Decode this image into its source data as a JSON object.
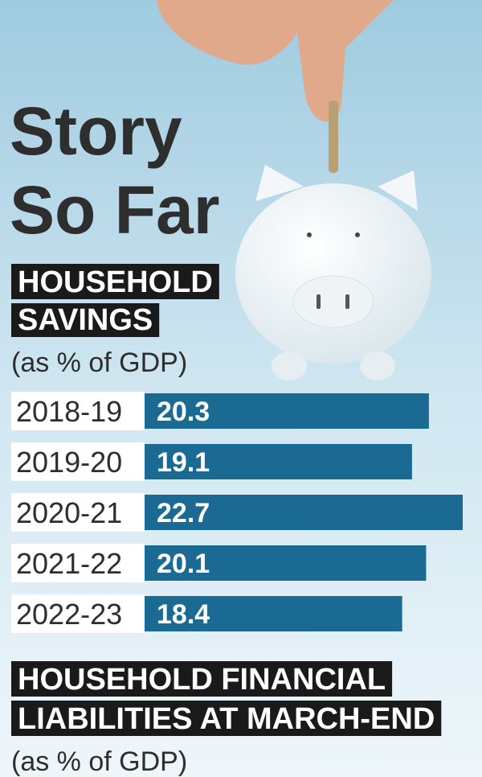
{
  "chart_data": {
    "type": "bar",
    "title": [
      "Story",
      "So Far"
    ],
    "heading": [
      "HOUSEHOLD",
      "SAVINGS"
    ],
    "unit": "(as % of GDP)",
    "categories": [
      "2018-19",
      "2019-20",
      "2020-21",
      "2021-22",
      "2022-23"
    ],
    "values": [
      20.3,
      19.1,
      22.7,
      20.1,
      18.4
    ],
    "color": "#1b6a93"
  },
  "next_section": {
    "heading": [
      "HOUSEHOLD FINANCIAL",
      "LIABILITIES AT MARCH-END"
    ],
    "unit": "(as % of GDP)"
  }
}
